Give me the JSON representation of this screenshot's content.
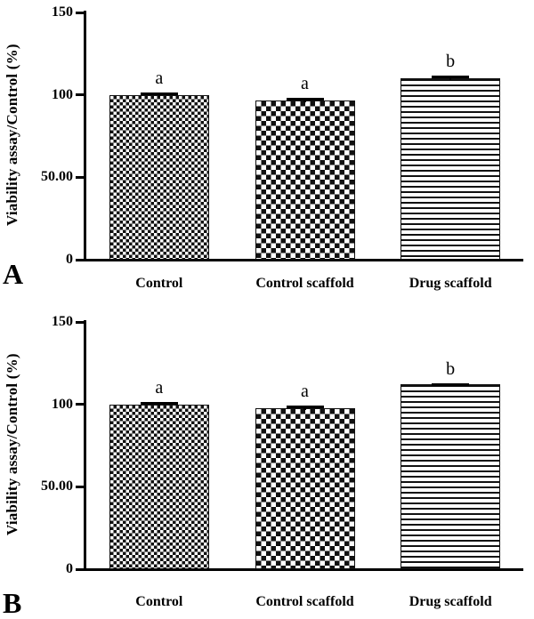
{
  "figure": {
    "background_color": "#ffffff",
    "ink_color": "#111111"
  },
  "chart_data": [
    {
      "type": "bar",
      "panel_label": "A",
      "title": "",
      "xlabel": "",
      "ylabel": "Viability assay/Control (%)",
      "ylim": [
        0,
        150
      ],
      "grid": false,
      "legend": "none",
      "yticks": [
        {
          "value": 0,
          "label": "0"
        },
        {
          "value": 50,
          "label": "50.00"
        },
        {
          "value": 100,
          "label": "100"
        },
        {
          "value": 150,
          "label": "150"
        }
      ],
      "categories": [
        "Control",
        "Control scaffold",
        "Drug scaffold"
      ],
      "values": [
        100,
        96.5,
        110
      ],
      "errors": [
        1.5,
        1.5,
        1.5
      ],
      "significance": [
        "a",
        "a",
        "b"
      ],
      "patterns": [
        "checker-fine",
        "checker-coarse",
        "horizontal-lines"
      ],
      "bar_color": "#111111"
    },
    {
      "type": "bar",
      "panel_label": "B",
      "title": "",
      "xlabel": "",
      "ylabel": "Viability assay/Control (%)",
      "ylim": [
        0,
        150
      ],
      "grid": false,
      "legend": "none",
      "yticks": [
        {
          "value": 0,
          "label": "0"
        },
        {
          "value": 50,
          "label": "50.00"
        },
        {
          "value": 100,
          "label": "100"
        },
        {
          "value": 150,
          "label": "150"
        }
      ],
      "categories": [
        "Control",
        "Control scaffold",
        "Drug scaffold"
      ],
      "values": [
        100,
        97.5,
        112
      ],
      "errors": [
        1.5,
        2,
        1
      ],
      "significance": [
        "a",
        "a",
        "b"
      ],
      "patterns": [
        "checker-fine",
        "checker-coarse",
        "horizontal-lines"
      ],
      "bar_color": "#111111"
    }
  ]
}
